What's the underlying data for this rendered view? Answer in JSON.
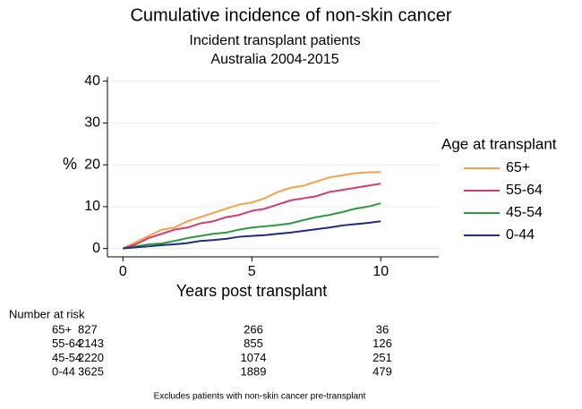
{
  "chart_data": {
    "type": "line",
    "title": "Cumulative incidence of non-skin cancer",
    "subtitle": [
      "Incident transplant patients",
      "Australia 2004-2015"
    ],
    "x_label": "Years post transplant",
    "y_label": "%",
    "legend_title": "Age at transplant",
    "legend_position": "right",
    "grid": true,
    "x": [
      0,
      0.5,
      1,
      1.5,
      2,
      2.5,
      3,
      3.5,
      4,
      4.5,
      5,
      5.5,
      6,
      6.5,
      7,
      7.5,
      8,
      8.5,
      9,
      9.5,
      10
    ],
    "series": [
      {
        "name": "65+",
        "color": "#f5a04a",
        "values": [
          0,
          1.5,
          3,
          4.5,
          5,
          6.5,
          7.5,
          8.5,
          9.5,
          10.5,
          11,
          12,
          13.5,
          14.5,
          15,
          16,
          17,
          17.5,
          18,
          18.2,
          18.3
        ]
      },
      {
        "name": "55-64",
        "color": "#d83a6e",
        "values": [
          0,
          1,
          2.5,
          3.5,
          4.5,
          5,
          6,
          6.5,
          7.5,
          8,
          9,
          9.5,
          10.5,
          11.5,
          12,
          12.5,
          13.5,
          14,
          14.5,
          15,
          15.5
        ]
      },
      {
        "name": "45-54",
        "color": "#2e9a3e",
        "values": [
          0,
          0.5,
          1,
          1.2,
          1.8,
          2.5,
          3,
          3.5,
          3.8,
          4.5,
          5,
          5.3,
          5.6,
          6,
          6.8,
          7.5,
          8,
          8.7,
          9.5,
          10,
          10.8
        ]
      },
      {
        "name": "0-44",
        "color": "#1f2a8a",
        "values": [
          0,
          0.3,
          0.5,
          0.8,
          1,
          1.3,
          1.8,
          2,
          2.3,
          2.8,
          3,
          3.2,
          3.5,
          3.8,
          4.2,
          4.6,
          5,
          5.5,
          5.8,
          6.1,
          6.5
        ]
      }
    ],
    "xlim": [
      -0.6,
      12.25
    ],
    "xticks": [
      0,
      5,
      10
    ],
    "ylim": [
      -2,
      41
    ],
    "yticks": [
      0,
      10,
      20,
      30,
      40
    ]
  },
  "risk_table": {
    "title": "Number at risk",
    "rows": [
      {
        "label": "65+",
        "values": [
          827,
          266,
          36
        ]
      },
      {
        "label": "55-64",
        "values": [
          2143,
          855,
          126
        ]
      },
      {
        "label": "45-54",
        "values": [
          2220,
          1074,
          251
        ]
      },
      {
        "label": "0-44",
        "values": [
          3625,
          1889,
          479
        ]
      }
    ]
  },
  "footnote": "Excludes patients with non-skin cancer pre-transplant"
}
